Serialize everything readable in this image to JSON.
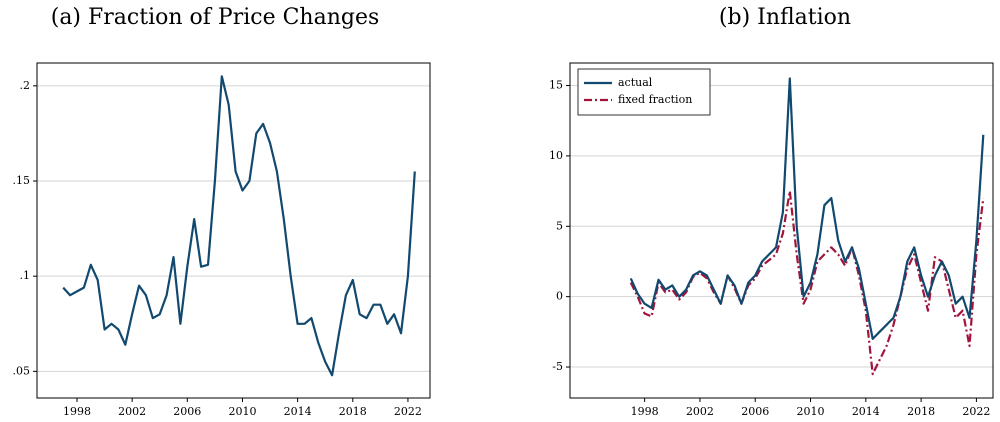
{
  "chart_data": [
    {
      "type": "line",
      "title": "(a) Fraction of Price Changes",
      "x": [
        1997.0,
        1997.5,
        1998.0,
        1998.5,
        1999.0,
        1999.5,
        2000.0,
        2000.5,
        2001.0,
        2001.5,
        2002.0,
        2002.5,
        2003.0,
        2003.5,
        2004.0,
        2004.5,
        2005.0,
        2005.5,
        2006.0,
        2006.5,
        2007.0,
        2007.5,
        2008.0,
        2008.5,
        2009.0,
        2009.5,
        2010.0,
        2010.5,
        2011.0,
        2011.5,
        2012.0,
        2012.5,
        2013.0,
        2013.5,
        2014.0,
        2014.5,
        2015.0,
        2015.5,
        2016.0,
        2016.5,
        2017.0,
        2017.5,
        2018.0,
        2018.5,
        2019.0,
        2019.5,
        2020.0,
        2020.5,
        2021.0,
        2021.5,
        2022.0,
        2022.5
      ],
      "values": [
        0.094,
        0.09,
        0.092,
        0.094,
        0.106,
        0.098,
        0.072,
        0.075,
        0.072,
        0.064,
        0.08,
        0.095,
        0.09,
        0.078,
        0.08,
        0.09,
        0.11,
        0.075,
        0.105,
        0.13,
        0.105,
        0.106,
        0.15,
        0.205,
        0.19,
        0.155,
        0.145,
        0.15,
        0.175,
        0.18,
        0.17,
        0.155,
        0.13,
        0.1,
        0.075,
        0.075,
        0.078,
        0.065,
        0.055,
        0.048,
        0.07,
        0.09,
        0.098,
        0.08,
        0.078,
        0.085,
        0.085,
        0.075,
        0.08,
        0.07,
        0.1,
        0.155
      ],
      "color": "#11496f",
      "xlim": [
        1995.1,
        2023.6
      ],
      "xticks": [
        1998,
        2002,
        2006,
        2010,
        2014,
        2018,
        2022
      ],
      "ylim": [
        0.036,
        0.212
      ],
      "yticks": [
        {
          "value": 0.05,
          "label": ".05"
        },
        {
          "value": 0.1,
          "label": ".1"
        },
        {
          "value": 0.15,
          "label": ".15"
        },
        {
          "value": 0.2,
          "label": ".2"
        }
      ],
      "grid": true
    },
    {
      "type": "line",
      "title": "(b) Inflation",
      "x": [
        1997.0,
        1997.5,
        1998.0,
        1998.5,
        1999.0,
        1999.5,
        2000.0,
        2000.5,
        2001.0,
        2001.5,
        2002.0,
        2002.5,
        2003.0,
        2003.5,
        2004.0,
        2004.5,
        2005.0,
        2005.5,
        2006.0,
        2006.5,
        2007.0,
        2007.5,
        2008.0,
        2008.5,
        2009.0,
        2009.5,
        2010.0,
        2010.5,
        2011.0,
        2011.5,
        2012.0,
        2012.5,
        2013.0,
        2013.5,
        2014.0,
        2014.5,
        2015.0,
        2015.5,
        2016.0,
        2016.5,
        2017.0,
        2017.5,
        2018.0,
        2018.5,
        2019.0,
        2019.5,
        2020.0,
        2020.5,
        2021.0,
        2021.5,
        2022.0,
        2022.5
      ],
      "series": [
        {
          "name": "actual",
          "color": "#11496f",
          "values": [
            1.3,
            0.2,
            -0.5,
            -0.8,
            1.2,
            0.5,
            0.8,
            0,
            0.5,
            1.5,
            1.8,
            1.5,
            0.5,
            -0.5,
            1.5,
            0.8,
            -0.5,
            1,
            1.5,
            2.5,
            3,
            3.5,
            6,
            15.5,
            5,
            0,
            1,
            3,
            6.5,
            7,
            4,
            2.5,
            3.5,
            2,
            -0.5,
            -3,
            -2.5,
            -2,
            -1.5,
            0,
            2.5,
            3.5,
            1.5,
            0,
            1.5,
            2.5,
            1.5,
            -0.5,
            0,
            -1.5,
            4,
            11.5
          ]
        },
        {
          "name": "fixed fraction",
          "color": "#a3143d",
          "dash": true,
          "values": [
            1.0,
            0,
            -1.2,
            -1.4,
            1,
            0.3,
            0.5,
            -0.2,
            0.3,
            1.4,
            1.7,
            1.3,
            0.3,
            -0.5,
            1.5,
            0.6,
            -0.5,
            0.8,
            1.3,
            2.2,
            2.6,
            3,
            4.5,
            7.5,
            3,
            -0.5,
            0.5,
            2.5,
            3,
            3.5,
            3,
            2.2,
            3.5,
            1.5,
            -1,
            -5.5,
            -4.5,
            -3.5,
            -2,
            0,
            2,
            3,
            1,
            -1,
            2.8,
            2.5,
            0.5,
            -1.5,
            -1,
            -3.5,
            3,
            7
          ]
        }
      ],
      "xlim": [
        1992.6,
        2023.2
      ],
      "xticks": [
        1998,
        2002,
        2006,
        2010,
        2014,
        2018,
        2022
      ],
      "ylim": [
        -7.2,
        16.6
      ],
      "yticks": [
        -5,
        0,
        5,
        10,
        15
      ],
      "grid": true,
      "legend": "upper left"
    }
  ]
}
